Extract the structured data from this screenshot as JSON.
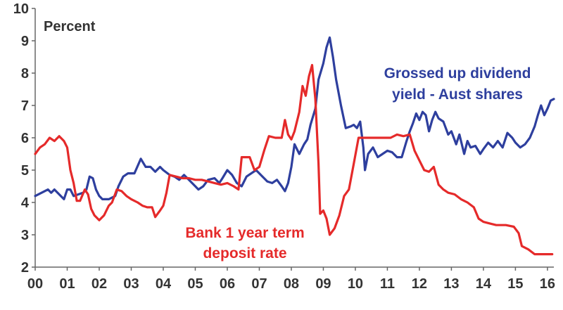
{
  "chart_data": {
    "type": "line",
    "title": "",
    "unit_label": "Percent",
    "xlabel": "",
    "ylabel": "",
    "x_ticks": [
      "00",
      "01",
      "02",
      "03",
      "04",
      "05",
      "06",
      "07",
      "08",
      "09",
      "10",
      "11",
      "12",
      "13",
      "14",
      "15",
      "16"
    ],
    "y_ticks": [
      "2",
      "3",
      "4",
      "5",
      "6",
      "7",
      "8",
      "9",
      "10"
    ],
    "xlim": [
      2000,
      2016.2
    ],
    "ylim": [
      2,
      10
    ],
    "grid": false,
    "legend": "none",
    "series": [
      {
        "name": "Grossed up dividend yield - Aust shares",
        "label_lines": [
          "Grossed up dividend",
          "yield - Aust shares"
        ],
        "color": "#2e3f9e",
        "points": [
          [
            2000.0,
            4.2
          ],
          [
            2000.2,
            4.3
          ],
          [
            2000.4,
            4.4
          ],
          [
            2000.5,
            4.3
          ],
          [
            2000.6,
            4.4
          ],
          [
            2000.75,
            4.25
          ],
          [
            2000.9,
            4.1
          ],
          [
            2001.0,
            4.4
          ],
          [
            2001.1,
            4.4
          ],
          [
            2001.2,
            4.2
          ],
          [
            2001.35,
            4.25
          ],
          [
            2001.5,
            4.3
          ],
          [
            2001.6,
            4.4
          ],
          [
            2001.7,
            4.8
          ],
          [
            2001.8,
            4.75
          ],
          [
            2001.9,
            4.4
          ],
          [
            2002.0,
            4.2
          ],
          [
            2002.1,
            4.1
          ],
          [
            2002.3,
            4.1
          ],
          [
            2002.5,
            4.2
          ],
          [
            2002.6,
            4.5
          ],
          [
            2002.75,
            4.8
          ],
          [
            2002.9,
            4.9
          ],
          [
            2003.1,
            4.9
          ],
          [
            2003.3,
            5.35
          ],
          [
            2003.45,
            5.1
          ],
          [
            2003.6,
            5.1
          ],
          [
            2003.75,
            4.95
          ],
          [
            2003.9,
            5.1
          ],
          [
            2004.0,
            5.0
          ],
          [
            2004.2,
            4.85
          ],
          [
            2004.35,
            4.8
          ],
          [
            2004.5,
            4.7
          ],
          [
            2004.65,
            4.85
          ],
          [
            2004.8,
            4.7
          ],
          [
            2005.0,
            4.5
          ],
          [
            2005.1,
            4.4
          ],
          [
            2005.25,
            4.5
          ],
          [
            2005.4,
            4.7
          ],
          [
            2005.6,
            4.75
          ],
          [
            2005.75,
            4.6
          ],
          [
            2005.85,
            4.75
          ],
          [
            2006.0,
            5.0
          ],
          [
            2006.15,
            4.85
          ],
          [
            2006.3,
            4.6
          ],
          [
            2006.45,
            4.5
          ],
          [
            2006.6,
            4.8
          ],
          [
            2006.75,
            4.9
          ],
          [
            2006.9,
            5.0
          ],
          [
            2007.1,
            4.8
          ],
          [
            2007.25,
            4.65
          ],
          [
            2007.4,
            4.6
          ],
          [
            2007.55,
            4.7
          ],
          [
            2007.7,
            4.5
          ],
          [
            2007.8,
            4.35
          ],
          [
            2007.9,
            4.6
          ],
          [
            2008.0,
            5.1
          ],
          [
            2008.1,
            5.8
          ],
          [
            2008.25,
            5.5
          ],
          [
            2008.4,
            5.8
          ],
          [
            2008.5,
            5.95
          ],
          [
            2008.6,
            6.4
          ],
          [
            2008.75,
            6.9
          ],
          [
            2008.85,
            7.8
          ],
          [
            2009.0,
            8.3
          ],
          [
            2009.1,
            8.8
          ],
          [
            2009.2,
            9.1
          ],
          [
            2009.3,
            8.5
          ],
          [
            2009.4,
            7.8
          ],
          [
            2009.55,
            7.0
          ],
          [
            2009.7,
            6.3
          ],
          [
            2009.85,
            6.35
          ],
          [
            2009.95,
            6.4
          ],
          [
            2010.05,
            6.3
          ],
          [
            2010.15,
            6.5
          ],
          [
            2010.25,
            5.7
          ],
          [
            2010.3,
            5.0
          ],
          [
            2010.4,
            5.5
          ],
          [
            2010.55,
            5.7
          ],
          [
            2010.7,
            5.4
          ],
          [
            2010.85,
            5.5
          ],
          [
            2011.0,
            5.6
          ],
          [
            2011.15,
            5.55
          ],
          [
            2011.3,
            5.4
          ],
          [
            2011.45,
            5.4
          ],
          [
            2011.6,
            5.9
          ],
          [
            2011.7,
            6.2
          ],
          [
            2011.8,
            6.45
          ],
          [
            2011.9,
            6.75
          ],
          [
            2012.0,
            6.55
          ],
          [
            2012.1,
            6.8
          ],
          [
            2012.2,
            6.7
          ],
          [
            2012.3,
            6.2
          ],
          [
            2012.4,
            6.55
          ],
          [
            2012.5,
            6.8
          ],
          [
            2012.6,
            6.6
          ],
          [
            2012.75,
            6.5
          ],
          [
            2012.9,
            6.1
          ],
          [
            2013.0,
            6.2
          ],
          [
            2013.15,
            5.8
          ],
          [
            2013.25,
            6.1
          ],
          [
            2013.4,
            5.5
          ],
          [
            2013.5,
            5.9
          ],
          [
            2013.6,
            5.7
          ],
          [
            2013.75,
            5.75
          ],
          [
            2013.9,
            5.5
          ],
          [
            2014.0,
            5.65
          ],
          [
            2014.15,
            5.85
          ],
          [
            2014.3,
            5.7
          ],
          [
            2014.45,
            5.9
          ],
          [
            2014.6,
            5.7
          ],
          [
            2014.75,
            6.15
          ],
          [
            2014.9,
            6.0
          ],
          [
            2015.0,
            5.85
          ],
          [
            2015.15,
            5.7
          ],
          [
            2015.3,
            5.8
          ],
          [
            2015.45,
            6.0
          ],
          [
            2015.6,
            6.35
          ],
          [
            2015.7,
            6.7
          ],
          [
            2015.8,
            7.0
          ],
          [
            2015.9,
            6.7
          ],
          [
            2016.0,
            6.9
          ],
          [
            2016.1,
            7.15
          ],
          [
            2016.2,
            7.2
          ]
        ]
      },
      {
        "name": "Bank 1 year term deposit rate",
        "label_lines": [
          "Bank 1 year term",
          "deposit rate"
        ],
        "color": "#e52a2a",
        "points": [
          [
            2000.0,
            5.5
          ],
          [
            2000.15,
            5.7
          ],
          [
            2000.3,
            5.8
          ],
          [
            2000.45,
            6.0
          ],
          [
            2000.6,
            5.9
          ],
          [
            2000.75,
            6.05
          ],
          [
            2000.9,
            5.9
          ],
          [
            2001.0,
            5.7
          ],
          [
            2001.1,
            5.0
          ],
          [
            2001.2,
            4.6
          ],
          [
            2001.3,
            4.05
          ],
          [
            2001.4,
            4.05
          ],
          [
            2001.55,
            4.4
          ],
          [
            2001.65,
            4.25
          ],
          [
            2001.75,
            3.8
          ],
          [
            2001.85,
            3.6
          ],
          [
            2002.0,
            3.45
          ],
          [
            2002.15,
            3.6
          ],
          [
            2002.3,
            3.9
          ],
          [
            2002.4,
            4.0
          ],
          [
            2002.55,
            4.4
          ],
          [
            2002.7,
            4.35
          ],
          [
            2002.85,
            4.2
          ],
          [
            2003.0,
            4.1
          ],
          [
            2003.2,
            4.0
          ],
          [
            2003.35,
            3.9
          ],
          [
            2003.5,
            3.85
          ],
          [
            2003.65,
            3.85
          ],
          [
            2003.75,
            3.55
          ],
          [
            2003.9,
            3.75
          ],
          [
            2004.0,
            3.9
          ],
          [
            2004.1,
            4.3
          ],
          [
            2004.2,
            4.85
          ],
          [
            2004.4,
            4.8
          ],
          [
            2004.6,
            4.75
          ],
          [
            2004.8,
            4.75
          ],
          [
            2005.0,
            4.7
          ],
          [
            2005.2,
            4.7
          ],
          [
            2005.4,
            4.65
          ],
          [
            2005.6,
            4.6
          ],
          [
            2005.8,
            4.55
          ],
          [
            2006.0,
            4.6
          ],
          [
            2006.2,
            4.5
          ],
          [
            2006.35,
            4.4
          ],
          [
            2006.45,
            5.4
          ],
          [
            2006.7,
            5.4
          ],
          [
            2006.85,
            5.0
          ],
          [
            2007.0,
            5.1
          ],
          [
            2007.15,
            5.6
          ],
          [
            2007.3,
            6.05
          ],
          [
            2007.5,
            6.0
          ],
          [
            2007.7,
            6.0
          ],
          [
            2007.8,
            6.55
          ],
          [
            2007.9,
            6.1
          ],
          [
            2008.0,
            5.95
          ],
          [
            2008.1,
            6.2
          ],
          [
            2008.25,
            6.8
          ],
          [
            2008.35,
            7.6
          ],
          [
            2008.45,
            7.3
          ],
          [
            2008.55,
            7.9
          ],
          [
            2008.65,
            8.25
          ],
          [
            2008.75,
            7.2
          ],
          [
            2008.85,
            5.2
          ],
          [
            2008.9,
            3.65
          ],
          [
            2009.0,
            3.75
          ],
          [
            2009.1,
            3.5
          ],
          [
            2009.2,
            3.0
          ],
          [
            2009.35,
            3.2
          ],
          [
            2009.5,
            3.6
          ],
          [
            2009.65,
            4.2
          ],
          [
            2009.8,
            4.4
          ],
          [
            2009.95,
            5.2
          ],
          [
            2010.1,
            6.0
          ],
          [
            2010.3,
            6.0
          ],
          [
            2010.6,
            6.0
          ],
          [
            2010.9,
            6.0
          ],
          [
            2011.1,
            6.0
          ],
          [
            2011.3,
            6.1
          ],
          [
            2011.5,
            6.05
          ],
          [
            2011.7,
            6.1
          ],
          [
            2011.85,
            5.6
          ],
          [
            2012.0,
            5.3
          ],
          [
            2012.15,
            5.0
          ],
          [
            2012.3,
            4.95
          ],
          [
            2012.45,
            5.1
          ],
          [
            2012.6,
            4.55
          ],
          [
            2012.75,
            4.4
          ],
          [
            2012.9,
            4.3
          ],
          [
            2013.1,
            4.25
          ],
          [
            2013.3,
            4.1
          ],
          [
            2013.5,
            4.0
          ],
          [
            2013.7,
            3.85
          ],
          [
            2013.85,
            3.5
          ],
          [
            2014.0,
            3.4
          ],
          [
            2014.2,
            3.35
          ],
          [
            2014.4,
            3.3
          ],
          [
            2014.7,
            3.3
          ],
          [
            2014.95,
            3.25
          ],
          [
            2015.1,
            3.05
          ],
          [
            2015.2,
            2.65
          ],
          [
            2015.4,
            2.55
          ],
          [
            2015.6,
            2.4
          ],
          [
            2015.8,
            2.4
          ],
          [
            2016.0,
            2.4
          ],
          [
            2016.15,
            2.4
          ]
        ]
      }
    ]
  }
}
